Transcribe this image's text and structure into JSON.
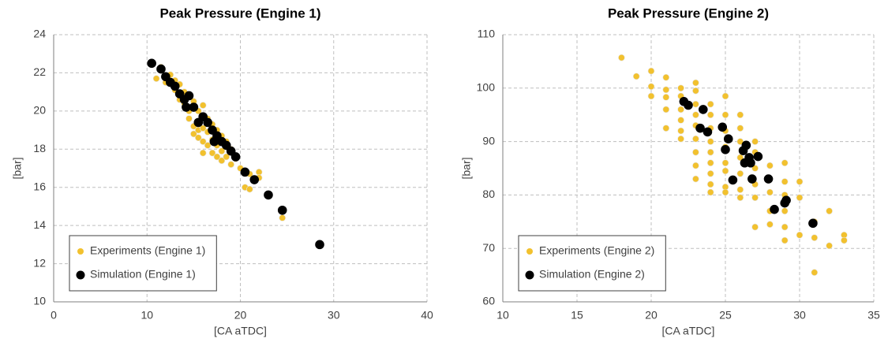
{
  "chart_data": [
    {
      "type": "scatter",
      "title": "Peak Pressure (Engine 1)",
      "xlabel": "[CA aTDC]",
      "ylabel": "[bar]",
      "xlim": [
        0,
        40
      ],
      "xticks": [
        0,
        10,
        20,
        30,
        40
      ],
      "ylim": [
        10,
        24
      ],
      "yticks": [
        10,
        12,
        14,
        16,
        18,
        20,
        22,
        24
      ],
      "grid": true,
      "legend": "lower left",
      "series": [
        {
          "name": "Experiments (Engine 1)",
          "color": "#f2c12e",
          "x": [
            11,
            11.5,
            12,
            12.5,
            13,
            13,
            13.5,
            13.5,
            14,
            14,
            14.5,
            14.5,
            15,
            15,
            15,
            15.5,
            15.5,
            15.5,
            16,
            16,
            16,
            16,
            16.5,
            16.5,
            16.5,
            17,
            17,
            17,
            17.5,
            17.5,
            17.5,
            18,
            18,
            18,
            18.5,
            18.5,
            19,
            19,
            19.5,
            20,
            20.5,
            21,
            21,
            22,
            22,
            24.5
          ],
          "values": [
            21.7,
            22.3,
            21.5,
            21.9,
            21.6,
            21.1,
            21.4,
            20.6,
            20.4,
            21.0,
            20.0,
            19.6,
            20.5,
            19.2,
            18.8,
            20.0,
            19.0,
            18.6,
            20.3,
            19.1,
            18.4,
            17.8,
            19.6,
            18.9,
            18.2,
            19.3,
            18.5,
            17.8,
            19.0,
            18.2,
            17.6,
            18.7,
            17.9,
            17.4,
            18.4,
            17.6,
            18.0,
            17.2,
            17.5,
            17.0,
            16.0,
            15.9,
            16.7,
            16.8,
            16.5,
            14.4
          ]
        },
        {
          "name": "Simulation (Engine 1)",
          "color": "#000000",
          "x": [
            10.5,
            11.5,
            12,
            12.5,
            13,
            13.5,
            14,
            14.2,
            14.5,
            15,
            15.5,
            16,
            16.5,
            17,
            17.5,
            17.2,
            18,
            18.5,
            19,
            19.5,
            20.5,
            21.5,
            23,
            24.5,
            28.5
          ],
          "values": [
            22.5,
            22.2,
            21.8,
            21.5,
            21.3,
            20.9,
            20.6,
            20.2,
            20.8,
            20.2,
            19.4,
            19.7,
            19.4,
            19.0,
            18.7,
            18.4,
            18.4,
            18.2,
            17.9,
            17.6,
            16.8,
            16.4,
            15.6,
            14.8,
            13.0
          ]
        }
      ]
    },
    {
      "type": "scatter",
      "title": "Peak Pressure (Engine 2)",
      "xlabel": "[CA aTDC]",
      "ylabel": "[bar]",
      "xlim": [
        10,
        35
      ],
      "xticks": [
        10,
        15,
        20,
        25,
        30,
        35
      ],
      "ylim": [
        60,
        110
      ],
      "yticks": [
        60,
        70,
        80,
        90,
        100,
        110
      ],
      "grid": true,
      "legend": "lower left",
      "series": [
        {
          "name": "Experiments (Engine 2)",
          "color": "#f2c12e",
          "x": [
            18,
            19,
            20,
            20,
            20,
            21,
            21,
            21,
            21,
            21,
            22,
            22,
            22,
            22,
            22,
            22,
            23,
            23,
            23,
            23,
            23,
            23,
            23,
            23,
            23,
            24,
            24,
            24,
            24,
            24,
            24,
            24,
            24,
            24,
            25,
            25,
            25,
            25,
            25,
            25,
            25,
            25,
            26,
            26,
            26,
            26,
            26,
            26,
            26,
            27,
            27,
            27,
            27,
            27,
            27,
            28,
            28,
            28,
            28,
            28,
            29,
            29,
            29,
            29,
            29,
            29,
            30,
            30,
            30,
            31,
            31,
            31,
            32,
            32,
            33,
            33
          ],
          "values": [
            105.7,
            102.2,
            103.2,
            100.3,
            98.5,
            102,
            99.7,
            98.3,
            96,
            92.5,
            100,
            98.5,
            96,
            94,
            92,
            90.5,
            101,
            99.5,
            97,
            95,
            93,
            90.5,
            88,
            85.5,
            83,
            97,
            95,
            92.5,
            90,
            88,
            86,
            84,
            82,
            80.5,
            98.5,
            95,
            92,
            89,
            86,
            84.5,
            81.5,
            80.5,
            95,
            92.5,
            90,
            87,
            84,
            81,
            79.5,
            90,
            88,
            85,
            82,
            79.5,
            74,
            85.5,
            83,
            80.5,
            77,
            74.5,
            86,
            82.5,
            80,
            77,
            74,
            71.5,
            82.5,
            79.5,
            72.5,
            75,
            72,
            65.5,
            77,
            70.5,
            72.5,
            71.5
          ]
        },
        {
          "name": "Simulation (Engine 2)",
          "color": "#000000",
          "x": [
            22.2,
            22.5,
            23.3,
            23.5,
            23.8,
            24.8,
            25,
            25.2,
            25.5,
            26.2,
            26.3,
            26.4,
            26.6,
            26.7,
            26.8,
            27.2,
            27.9,
            28.3,
            29,
            29.1,
            30.9
          ],
          "values": [
            97.5,
            96.8,
            92.5,
            96,
            91.8,
            92.7,
            88.5,
            90.5,
            82.8,
            88.3,
            86,
            89.3,
            87,
            86,
            83,
            87.2,
            83,
            77.3,
            78.5,
            79,
            74.7
          ]
        }
      ]
    }
  ]
}
